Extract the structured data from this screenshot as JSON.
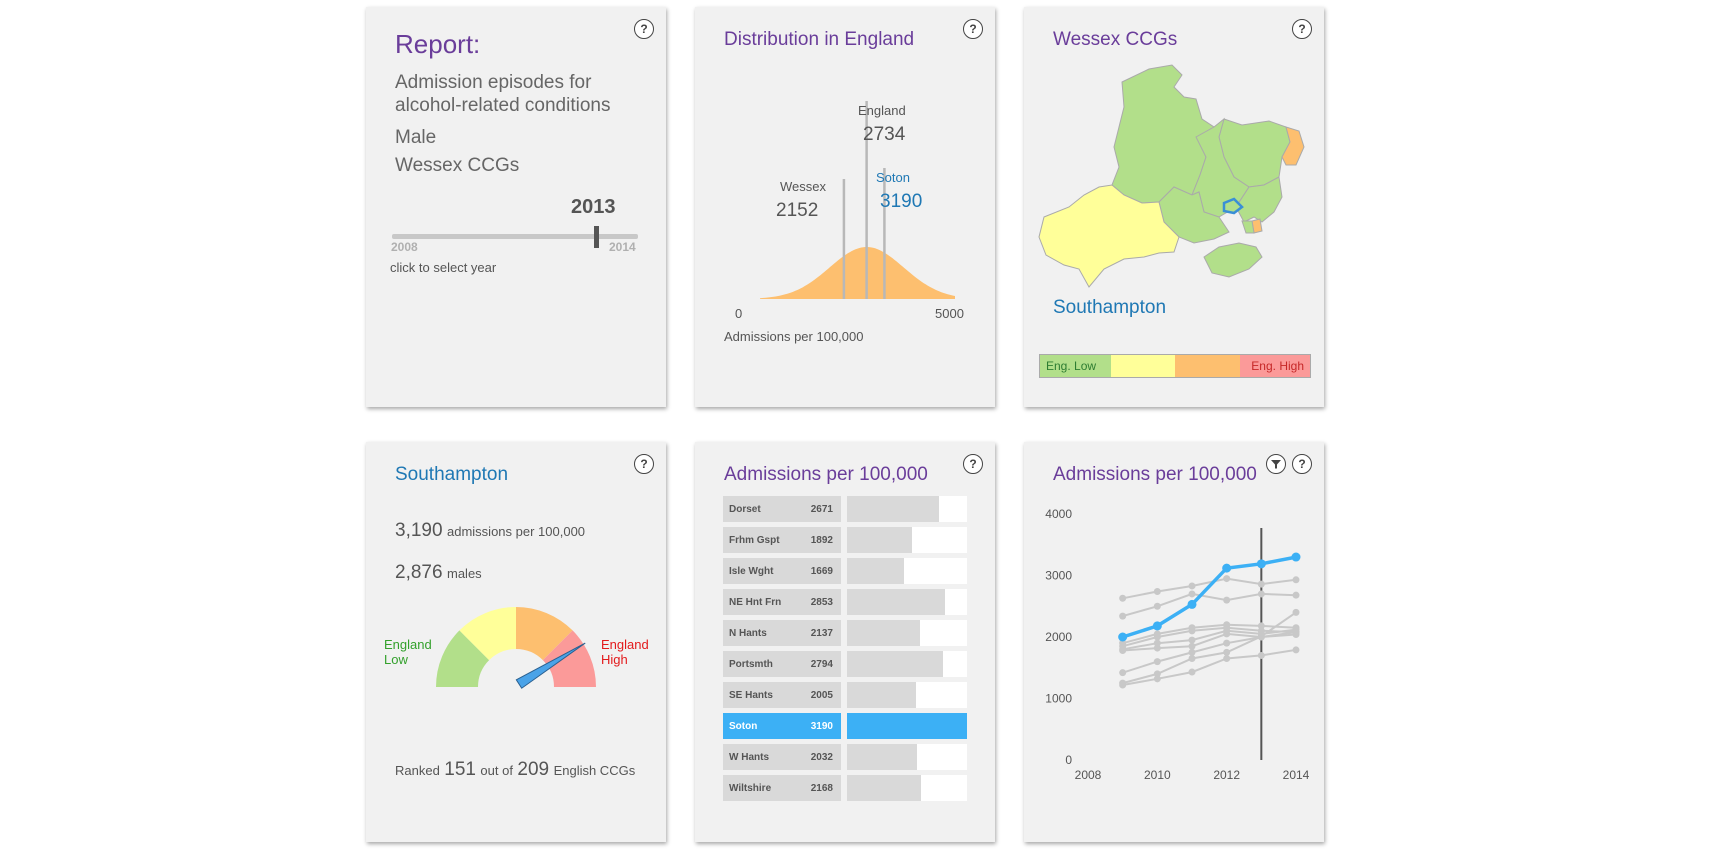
{
  "report": {
    "title": "Report:",
    "line1": "Admission episodes for",
    "line2": "alcohol-related conditions",
    "sex": "Male",
    "area": "Wessex CCGs",
    "selected_year": "2013",
    "year_min": "2008",
    "year_max": "2014",
    "slider_fraction": 0.8333,
    "hint": "click to select year"
  },
  "help_label": "?",
  "distribution": {
    "title": "Distribution in England",
    "england_label": "England",
    "england_value": "2734",
    "wessex_label": "Wessex",
    "wessex_value": "2152",
    "soton_label": "Soton",
    "soton_value": "3190",
    "axis_min": "0",
    "axis_max": "5000",
    "axis_title": "Admissions per 100,000",
    "curve_color": "#fdbf6f"
  },
  "map": {
    "title": "Wessex CCGs",
    "selected": "Southampton",
    "legend": [
      "Eng. Low",
      "",
      "",
      "Eng. High"
    ],
    "legend_colors": [
      "#b2df8a",
      "#ffff99",
      "#fdbf6f",
      "#fb9a99"
    ]
  },
  "summary": {
    "title": "Southampton",
    "rate_value": "3,190",
    "rate_unit": "admissions per 100,000",
    "pop_value": "2,876",
    "pop_unit": "males",
    "low_label_1": "England",
    "low_label_2": "Low",
    "high_label_1": "England",
    "high_label_2": "High",
    "rank_prefix": "Ranked",
    "rank": "151",
    "rank_mid": "out of",
    "total": "209",
    "rank_suffix": "English CCGs",
    "gauge_fraction": 0.82
  },
  "bars": {
    "title": "Admissions per 100,000",
    "highlight_color": "#3cb0f5"
  },
  "lines": {
    "title": "Admissions per 100,000",
    "highlight_color": "#3cb0f5"
  },
  "chart_data": [
    {
      "type": "area",
      "title": "Distribution in England",
      "xlabel": "Admissions per 100,000",
      "xlim": [
        0,
        5000
      ],
      "x_ticks": [
        "0",
        "5000"
      ],
      "markers": [
        {
          "name": "Wessex",
          "value": 2152
        },
        {
          "name": "England",
          "value": 2734
        },
        {
          "name": "Soton",
          "value": 3190
        }
      ]
    },
    {
      "type": "bar",
      "title": "Admissions per 100,000",
      "categories": [
        "Dorset",
        "Frhm Gspt",
        "Isle Wght",
        "NE Hnt Frn",
        "N Hants",
        "Portsmth",
        "SE Hants",
        "Soton",
        "W Hants",
        "Wiltshire"
      ],
      "values": [
        2671,
        1892,
        1669,
        2853,
        2137,
        2794,
        2005,
        3190,
        2032,
        2168
      ],
      "highlight": "Soton",
      "xlim": [
        0,
        3500
      ]
    },
    {
      "type": "line",
      "title": "Admissions per 100,000",
      "x": [
        2009,
        2010,
        2011,
        2012,
        2013,
        2014
      ],
      "x_ticks": [
        "2008",
        "2010",
        "2012",
        "2014"
      ],
      "y_ticks": [
        "0",
        "1000",
        "2000",
        "3000",
        "4000"
      ],
      "xlim": [
        2008,
        2014
      ],
      "ylim": [
        0,
        4000
      ],
      "selected_x": 2013,
      "highlight": {
        "values": [
          2000,
          2180,
          2530,
          3120,
          3190,
          3300
        ]
      },
      "series": [
        {
          "values": [
            2630,
            2740,
            2830,
            2950,
            2860,
            2930
          ]
        },
        {
          "values": [
            2340,
            2500,
            2700,
            2600,
            2700,
            2680
          ]
        },
        {
          "values": [
            1900,
            2050,
            2150,
            2200,
            2180,
            2150
          ]
        },
        {
          "values": [
            1850,
            2000,
            2100,
            2150,
            2100,
            2080
          ]
        },
        {
          "values": [
            1800,
            1900,
            1950,
            2100,
            2050,
            2120
          ]
        },
        {
          "values": [
            1780,
            1820,
            1850,
            2050,
            2000,
            2040
          ]
        },
        {
          "values": [
            1420,
            1600,
            1750,
            1900,
            2000,
            2080
          ]
        },
        {
          "values": [
            1250,
            1400,
            1650,
            1750,
            2010,
            2400
          ]
        },
        {
          "values": [
            1220,
            1320,
            1430,
            1650,
            1700,
            1790
          ]
        }
      ]
    }
  ]
}
